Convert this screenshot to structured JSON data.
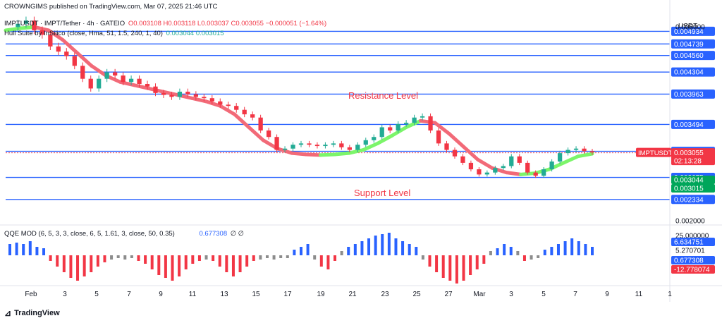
{
  "header": {
    "publisher": "CROWNGIMS published on TradingView.com, Mar 07, 2025 21:46 UTC",
    "symbol": "IMPTUSDT · IMPT/Tether · 4h · GATEIO",
    "ohlc": "O0.003108 H0.003118 L0.003037 C0.003055 −0.000051 (−1.64%)",
    "indicator": "Hull Suite by InSilico (close, Hma, 51, 1.5, 240, 1, 40)",
    "indicator_values": "0.003044 0.003015",
    "qqe_label": "QQE MOD (6, 5, 3, 3, close, 6, 5, 1.61, 3, close, 50, 0.35)",
    "qqe_value": "0.677308",
    "qqe_empty": "∅ ∅"
  },
  "currency": "USDT",
  "branding": "TradingView",
  "annotations": {
    "resistance": "Resistance Level",
    "support": "Support Level"
  },
  "colors": {
    "level_line": "#2962ff",
    "up_candle": "#22ab94",
    "down_candle": "#f23645",
    "hull_up": "#7cf56a",
    "hull_down": "#f26a78",
    "qqe_up": "#2962ff",
    "qqe_down": "#f23645",
    "qqe_neutral": "#8c8c8c",
    "annotation": "#f23645"
  },
  "chart_data": {
    "type": "candlestick",
    "symbol": "IMPTUSDT",
    "timeframe": "4h",
    "x_ticks": [
      "Feb",
      "3",
      "5",
      "7",
      "9",
      "11",
      "13",
      "15",
      "17",
      "19",
      "21",
      "23",
      "25",
      "27",
      "Mar",
      "3",
      "5",
      "7",
      "9",
      "11",
      "1"
    ],
    "price_levels": [
      0.004934,
      0.004739,
      0.00456,
      0.004304,
      0.003963,
      0.003494,
      0.003078,
      0.002675,
      0.002334
    ],
    "y_axis_ticks": [
      "0.005000",
      "0.002000"
    ],
    "last_price": "0.003055",
    "countdown": "02:13:28",
    "hull_values": [
      "0.003044",
      "0.003015"
    ],
    "price_series": [
      0.005,
      0.00505,
      0.0051,
      0.00495,
      0.00488,
      0.0047,
      0.00462,
      0.00455,
      0.0044,
      0.0042,
      0.00405,
      0.0042,
      0.0043,
      0.00425,
      0.00415,
      0.0042,
      0.00412,
      0.00408,
      0.00398,
      0.00395,
      0.00392,
      0.004,
      0.00396,
      0.00392,
      0.0039,
      0.00385,
      0.0038,
      0.00378,
      0.00372,
      0.00365,
      0.0036,
      0.0034,
      0.0033,
      0.0031,
      0.00312,
      0.00318,
      0.0032,
      0.00318,
      0.00316,
      0.00318,
      0.0032,
      0.00314,
      0.0031,
      0.00318,
      0.00325,
      0.0033,
      0.00345,
      0.0034,
      0.0035,
      0.00352,
      0.0036,
      0.00362,
      0.0034,
      0.0032,
      0.0031,
      0.003,
      0.0029,
      0.0028,
      0.00272,
      0.00275,
      0.00282,
      0.00285,
      0.003,
      0.0029,
      0.00275,
      0.0027,
      0.0028,
      0.00292,
      0.00305,
      0.0031,
      0.00312,
      0.00308,
      0.00306
    ],
    "hull_series": [
      0.00495,
      0.00498,
      0.005,
      0.00495,
      0.0048,
      0.0046,
      0.0044,
      0.00425,
      0.00415,
      0.0041,
      0.00405,
      0.004,
      0.00395,
      0.0039,
      0.00385,
      0.00378,
      0.00365,
      0.00345,
      0.00325,
      0.00312,
      0.00305,
      0.00303,
      0.00302,
      0.00303,
      0.00305,
      0.0031,
      0.0032,
      0.00332,
      0.00345,
      0.00355,
      0.00352,
      0.00335,
      0.00315,
      0.00295,
      0.00282,
      0.00275,
      0.00272,
      0.00274,
      0.0028,
      0.0029,
      0.003,
      0.00304
    ],
    "qqe": {
      "ticks": [
        "25.000000",
        "6.634751",
        "5.270701",
        "0.677308",
        "-12.778074"
      ],
      "series": [
        8,
        9,
        8,
        10,
        6,
        5,
        -4,
        -8,
        -12,
        -16,
        -18,
        -15,
        -12,
        -8,
        -5,
        -3,
        -2,
        -3,
        -2,
        -4,
        -6,
        -10,
        -14,
        -16,
        -18,
        -15,
        -10,
        -6,
        -4,
        -3,
        -4,
        -8,
        -12,
        -15,
        -12,
        -8,
        -4,
        -3,
        -2,
        -3,
        -2,
        -2,
        4,
        6,
        8,
        -3,
        -8,
        -10,
        -4,
        3,
        6,
        8,
        10,
        12,
        14,
        15,
        16,
        12,
        10,
        8,
        6,
        -3,
        -8,
        -12,
        -16,
        -18,
        -20,
        -18,
        -14,
        -10,
        -6,
        3,
        5,
        8,
        6,
        3,
        -4,
        -3,
        -2,
        4,
        6,
        8,
        10,
        12,
        10,
        8,
        6
      ]
    }
  }
}
